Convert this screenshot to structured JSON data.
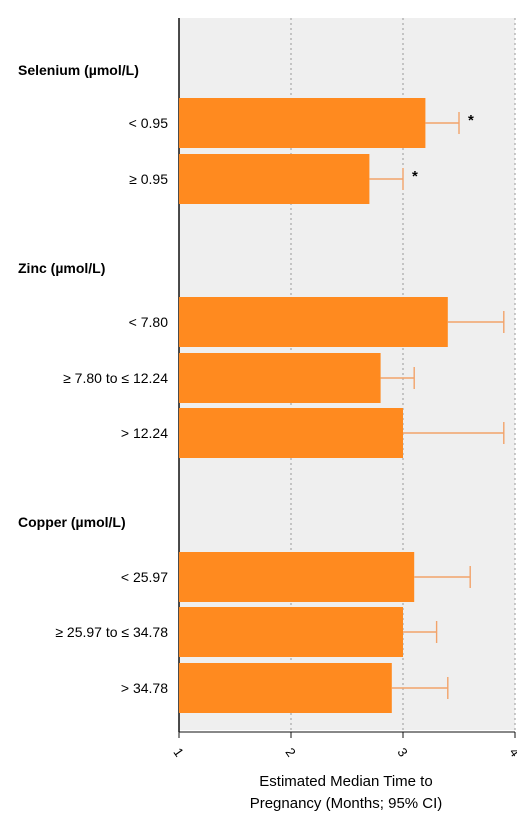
{
  "chart_data": {
    "type": "bar",
    "orientation": "horizontal",
    "xlabel": "Estimated Median Time to Pregnancy (Months; 95% CI)",
    "xlabel_lines": [
      "Estimated Median Time to",
      "Pregnancy (Months; 95% CI)"
    ],
    "xlim": [
      1,
      4
    ],
    "xticks": [
      "1",
      "2",
      "3",
      "4"
    ],
    "grid": "vertical dotted",
    "bar_color": "#ff8a1f",
    "errorbar_color": "#f2a36a",
    "plot_background": "#efefef",
    "groups": [
      {
        "label": "Selenium (µmol/L)",
        "items": [
          {
            "category": "< 0.95",
            "value": 3.2,
            "ci_upper": 3.5,
            "annotation": "*"
          },
          {
            "category": "≥ 0.95",
            "value": 2.7,
            "ci_upper": 3.0,
            "annotation": "*"
          }
        ]
      },
      {
        "label": "Zinc (µmol/L)",
        "items": [
          {
            "category": "< 7.80",
            "value": 3.4,
            "ci_upper": 3.9,
            "annotation": ""
          },
          {
            "category": "≥ 7.80 to ≤ 12.24",
            "value": 2.8,
            "ci_upper": 3.1,
            "annotation": ""
          },
          {
            "category": "> 12.24",
            "value": 3.0,
            "ci_upper": 3.9,
            "annotation": ""
          }
        ]
      },
      {
        "label": "Copper (µmol/L)",
        "items": [
          {
            "category": "< 25.97",
            "value": 3.1,
            "ci_upper": 3.6,
            "annotation": ""
          },
          {
            "category": "≥ 25.97 to ≤ 34.78",
            "value": 3.0,
            "ci_upper": 3.3,
            "annotation": ""
          },
          {
            "category": "> 34.78",
            "value": 2.9,
            "ci_upper": 3.4,
            "annotation": ""
          }
        ]
      }
    ]
  }
}
